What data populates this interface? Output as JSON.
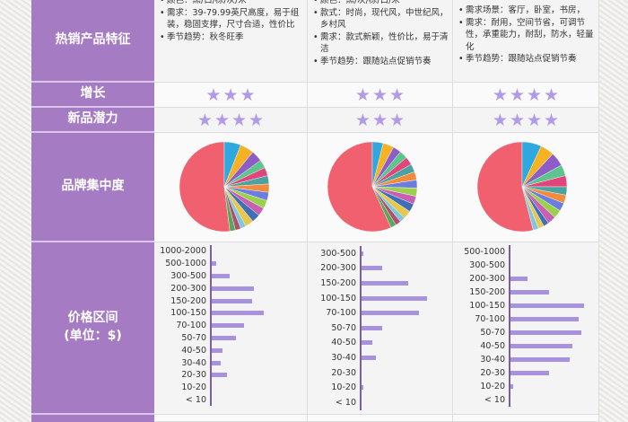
{
  "rows": {
    "features": "热销产品特征",
    "growth": "增长",
    "potential": "新品潜力",
    "brand": "品牌集中度",
    "price": "价格区间\n(单位：$)"
  },
  "price_label": {
    "line1": "价格区间",
    "line2": "(单位：$)"
  },
  "columns": [
    {
      "features": [
        "颜色：黑/白/棕/灰/米",
        "需求：39-79.99英尺高度，易于组装，稳固支撑，尺寸合适，性价比",
        "季节趋势：秋冬旺季"
      ],
      "growth_stars": 3,
      "potential_stars": 4,
      "pie_shares": [
        52,
        6,
        5,
        4,
        3,
        3,
        3,
        3,
        3,
        3,
        3,
        3,
        3,
        2,
        2,
        2
      ],
      "price_hist": {
        "categories": [
          "1000-2000",
          "500-1000",
          "300-500",
          "200-300",
          "150-200",
          "100-150",
          "70-100",
          "50-70",
          "40-50",
          "30-40",
          "20-30",
          "10-20",
          "< 10"
        ],
        "values": [
          0,
          7,
          22,
          49,
          47,
          60,
          38,
          29,
          14,
          12,
          19,
          1,
          1
        ]
      }
    },
    {
      "features": [
        "颜色：黑/灰/棕/白/米",
        "款式：时尚，现代风，中世纪风，乡村风",
        "需求：款式新颖，性价比，易于清洁",
        "季节趋势：跟随站点促销节奏"
      ],
      "growth_stars": 3,
      "potential_stars": 3,
      "pie_shares": [
        58,
        4,
        4,
        3,
        3,
        3,
        3,
        3,
        3,
        3,
        3,
        3,
        3,
        2,
        2,
        2
      ],
      "price_hist": {
        "categories": [
          "300-500",
          "200-300",
          "150-200",
          "100-150",
          "70-100",
          "50-70",
          "40-50",
          "30-40",
          "20-30",
          "10-20",
          "< 10"
        ],
        "values": [
          4,
          25,
          54,
          75,
          66,
          25,
          14,
          18,
          1,
          4,
          0
        ]
      }
    },
    {
      "features": [
        "需求场景：客厅，卧室，书房，",
        "需求：耐用，空间节省，可调节性，承重能力，耐刮，防水，轻量化",
        "季节趋势：跟随站点促销节奏"
      ],
      "growth_stars": 4,
      "potential_stars": 4,
      "pie_shares": [
        54,
        7,
        5,
        5,
        4,
        4,
        3,
        3,
        3,
        3,
        3,
        2,
        2,
        2
      ],
      "price_hist": {
        "categories": [
          "500-1000",
          "300-500",
          "200-300",
          "150-200",
          "100-150",
          "70-100",
          "50-70",
          "40-50",
          "30-40",
          "20-30",
          "10-20",
          "< 10"
        ],
        "values": [
          0,
          2,
          21,
          45,
          84,
          78,
          81,
          71,
          68,
          45,
          5,
          1
        ]
      }
    }
  ],
  "colors": {
    "label_bg": "#a57cc4",
    "star": "#b39ae6",
    "bar": "#a992dd",
    "pie": [
      "#f0606e",
      "#2fa8e0",
      "#f5b225",
      "#8e5cc7",
      "#5cc48c",
      "#e0457b",
      "#4aa3a0",
      "#f28b3c",
      "#6b7ee0",
      "#9bd04b",
      "#c75fb3",
      "#3f6fb5",
      "#e6c84a",
      "#7fc7e0",
      "#b0506a",
      "#58a85c"
    ]
  }
}
